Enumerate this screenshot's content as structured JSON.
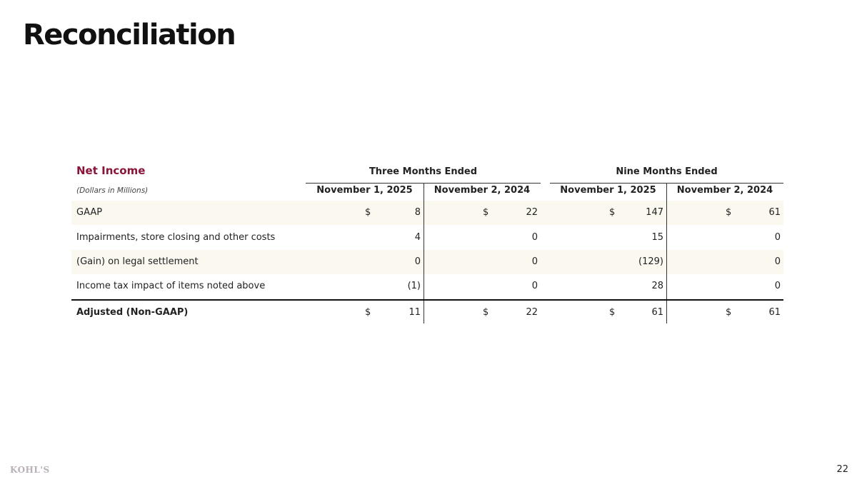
{
  "header": {
    "title": "Reconciliation"
  },
  "table": {
    "title": "Net Income",
    "units": "(Dollars in Millions)",
    "groups": [
      "Three Months Ended",
      "Nine Months Ended"
    ],
    "columns": [
      "November 1, 2025",
      "November 2, 2024",
      "November 1, 2025",
      "November 2, 2024"
    ],
    "rows": [
      {
        "label": "GAAP",
        "cells": [
          {
            "currency": "$",
            "value": "8"
          },
          {
            "currency": "$",
            "value": "22"
          },
          {
            "currency": "$",
            "value": "147"
          },
          {
            "currency": "$",
            "value": "61"
          }
        ]
      },
      {
        "label": "Impairments, store closing and other costs",
        "cells": [
          {
            "value": "4"
          },
          {
            "value": "0"
          },
          {
            "value": "15"
          },
          {
            "value": "0"
          }
        ]
      },
      {
        "label": "(Gain) on legal settlement",
        "cells": [
          {
            "value": "0"
          },
          {
            "value": "0"
          },
          {
            "value": "(129)"
          },
          {
            "value": "0"
          }
        ]
      },
      {
        "label": "Income tax impact of items noted above",
        "cells": [
          {
            "value": "(1)"
          },
          {
            "value": "0"
          },
          {
            "value": "28"
          },
          {
            "value": "0"
          }
        ]
      },
      {
        "label": "Adjusted (Non-GAAP)",
        "cells": [
          {
            "currency": "$",
            "value": "11"
          },
          {
            "currency": "$",
            "value": "22"
          },
          {
            "currency": "$",
            "value": "61"
          },
          {
            "currency": "$",
            "value": "61"
          }
        ]
      }
    ]
  },
  "footer": {
    "logo": "KOHL'S",
    "page": "22"
  }
}
